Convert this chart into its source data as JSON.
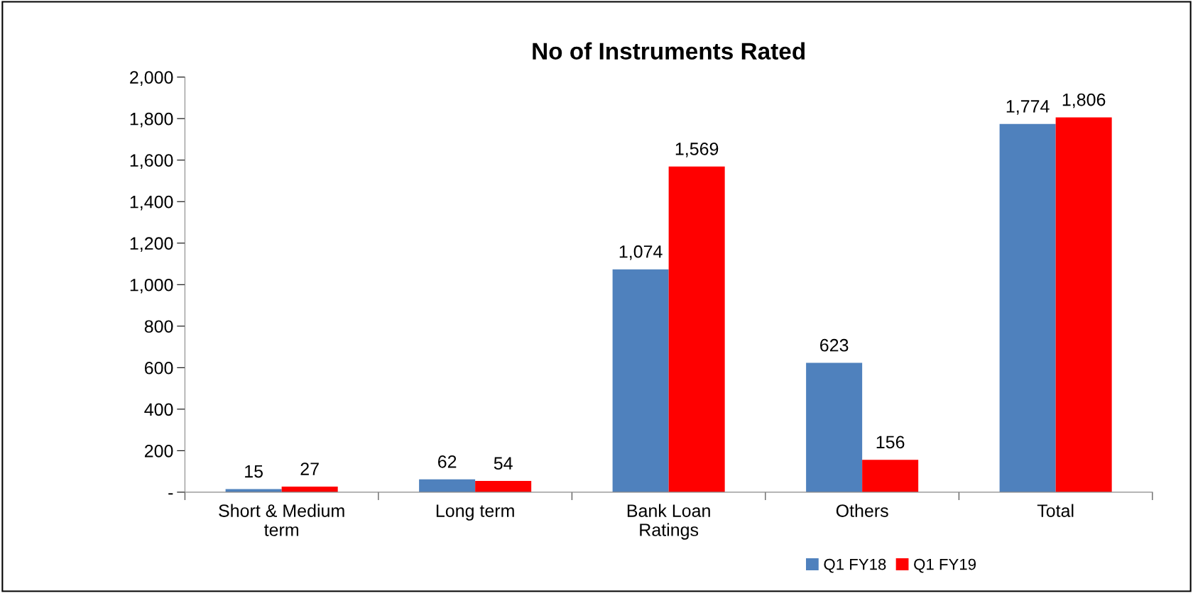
{
  "chart_data": {
    "type": "bar",
    "title": "No of Instruments Rated",
    "categories": [
      "Short & Medium\nterm",
      "Long term",
      "Bank Loan\nRatings",
      "Others",
      "Total"
    ],
    "series": [
      {
        "name": "Q1 FY18",
        "color": "#4f81bd",
        "values": [
          15,
          62,
          1074,
          623,
          1774
        ],
        "value_labels": [
          "15",
          "62",
          "1,074",
          "623",
          "1,774"
        ]
      },
      {
        "name": "Q1 FY19",
        "color": "#ff0000",
        "values": [
          27,
          54,
          1569,
          156,
          1806
        ],
        "value_labels": [
          "27",
          "54",
          "1,569",
          "156",
          "1,806"
        ]
      }
    ],
    "ylim": [
      0,
      2000
    ],
    "yticks": [
      {
        "value": 0,
        "label": "-"
      },
      200,
      400,
      600,
      800,
      {
        "value": 1000,
        "label": "1,000"
      },
      {
        "value": 1200,
        "label": "1,200"
      },
      {
        "value": 1400,
        "label": "1,400"
      },
      {
        "value": 1600,
        "label": "1,600"
      },
      {
        "value": 1800,
        "label": "1,800"
      },
      {
        "value": 2000,
        "label": "2,000"
      }
    ],
    "grid": false,
    "legend": "bottom"
  }
}
